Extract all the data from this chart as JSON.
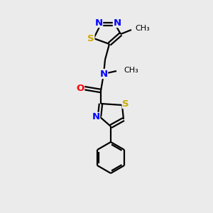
{
  "bg_color": "#ebebeb",
  "atom_colors": {
    "C": "#000000",
    "N": "#0000ff",
    "S": "#ccaa00",
    "O": "#ff0000"
  },
  "bond_color": "#000000",
  "bond_width": 1.6,
  "figsize": [
    3.0,
    3.0
  ],
  "dpi": 100,
  "xlim": [
    0,
    300
  ],
  "ylim": [
    0,
    300
  ]
}
